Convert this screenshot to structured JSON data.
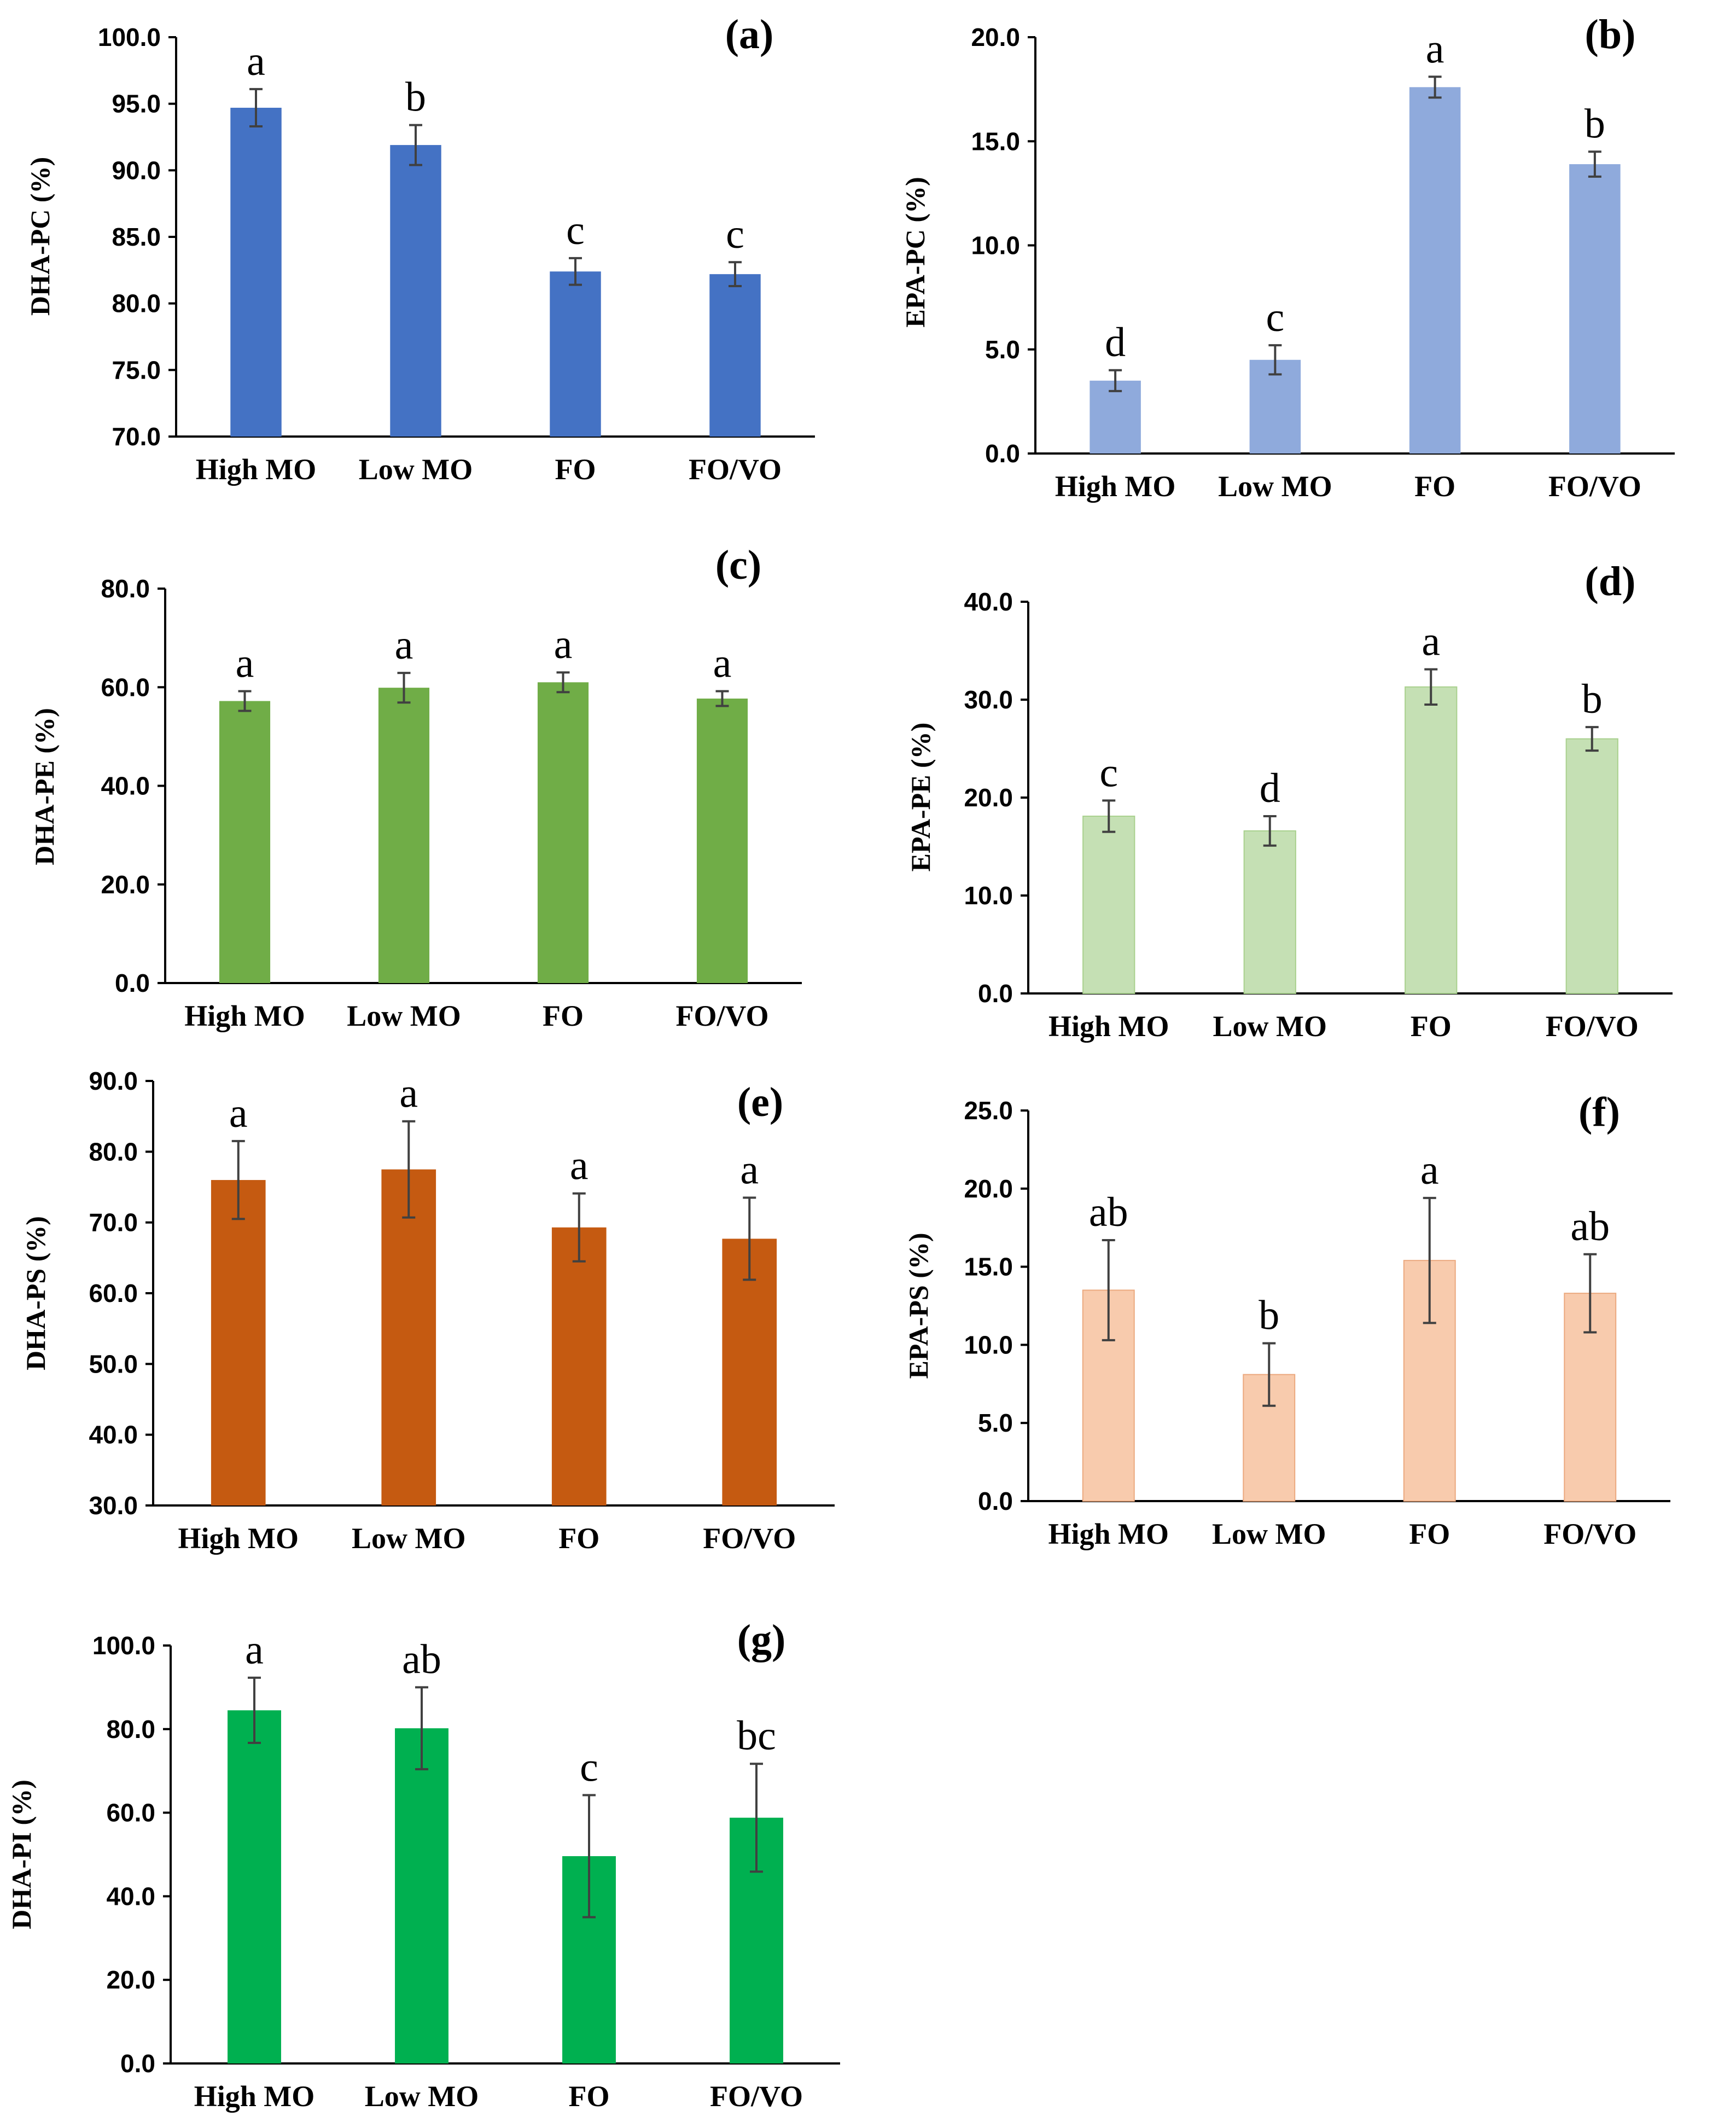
{
  "colors": {
    "a": "#4472C4",
    "b": "#8FAADC",
    "c": "#70AD47",
    "d": "#C5E0B4",
    "e": "#C55A11",
    "f": "#F8CBAD",
    "g": "#00B050"
  },
  "chart_data": [
    {
      "id": "a",
      "type": "bar",
      "panel_label": "(a)",
      "ylabel": "DHA-PC (%)",
      "categories": [
        "High MO",
        "Low MO",
        "FO",
        "FO/VO"
      ],
      "values": [
        94.7,
        91.9,
        82.4,
        82.2
      ],
      "errors": [
        1.4,
        1.5,
        1.0,
        0.9
      ],
      "significance": [
        "a",
        "b",
        "c",
        "c"
      ],
      "ylim": [
        70,
        100
      ],
      "yticks": [
        "70.0",
        "75.0",
        "80.0",
        "85.0",
        "90.0",
        "95.0",
        "100.0"
      ],
      "grid": false
    },
    {
      "id": "b",
      "type": "bar",
      "panel_label": "(b)",
      "ylabel": "EPA-PC (%)",
      "categories": [
        "High MO",
        "Low MO",
        "FO",
        "FO/VO"
      ],
      "values": [
        3.5,
        4.5,
        17.6,
        13.9
      ],
      "errors": [
        0.5,
        0.7,
        0.5,
        0.6
      ],
      "significance": [
        "d",
        "c",
        "a",
        "b"
      ],
      "ylim": [
        0,
        20
      ],
      "yticks": [
        "0.0",
        "5.0",
        "10.0",
        "15.0",
        "20.0"
      ],
      "grid": false
    },
    {
      "id": "c",
      "type": "bar",
      "panel_label": "(c)",
      "ylabel": "DHA-PE (%)",
      "categories": [
        "High MO",
        "Low MO",
        "FO",
        "FO/VO"
      ],
      "values": [
        57.2,
        59.9,
        61.0,
        57.7
      ],
      "errors": [
        2.0,
        3.0,
        2.0,
        1.5
      ],
      "significance": [
        "a",
        "a",
        "a",
        "a"
      ],
      "ylim": [
        0,
        80
      ],
      "yticks": [
        "0.0",
        "20.0",
        "40.0",
        "60.0",
        "80.0"
      ],
      "grid": false
    },
    {
      "id": "d",
      "type": "bar",
      "panel_label": "(d)",
      "ylabel": "EPA-PE (%)",
      "categories": [
        "High MO",
        "Low MO",
        "FO",
        "FO/VO"
      ],
      "values": [
        18.1,
        16.6,
        31.3,
        26.0
      ],
      "errors": [
        1.6,
        1.5,
        1.8,
        1.2
      ],
      "significance": [
        "c",
        "d",
        "a",
        "b"
      ],
      "ylim": [
        0,
        40
      ],
      "yticks": [
        "0.0",
        "10.0",
        "20.0",
        "30.0",
        "40.0"
      ],
      "grid": false
    },
    {
      "id": "e",
      "type": "bar",
      "panel_label": "(e)",
      "ylabel": "DHA-PS (%)",
      "categories": [
        "High MO",
        "Low MO",
        "FO",
        "FO/VO"
      ],
      "values": [
        76.0,
        77.5,
        69.3,
        67.7
      ],
      "errors": [
        5.5,
        6.8,
        4.8,
        5.8
      ],
      "significance": [
        "a",
        "a",
        "a",
        "a"
      ],
      "ylim": [
        30,
        90
      ],
      "yticks": [
        "30.0",
        "40.0",
        "50.0",
        "60.0",
        "70.0",
        "80.0",
        "90.0"
      ],
      "grid": false
    },
    {
      "id": "f",
      "type": "bar",
      "panel_label": "(f)",
      "ylabel": "EPA-PS (%)",
      "categories": [
        "High MO",
        "Low MO",
        "FO",
        "FO/VO"
      ],
      "values": [
        13.5,
        8.1,
        15.4,
        13.3
      ],
      "errors": [
        3.2,
        2.0,
        4.0,
        2.5
      ],
      "significance": [
        "ab",
        "b",
        "a",
        "ab"
      ],
      "ylim": [
        0,
        25
      ],
      "yticks": [
        "0.0",
        "5.0",
        "10.0",
        "15.0",
        "20.0",
        "25.0"
      ],
      "grid": false
    },
    {
      "id": "g",
      "type": "bar",
      "panel_label": "(g)",
      "ylabel": "DHA-PI (%)",
      "categories": [
        "High MO",
        "Low MO",
        "FO",
        "FO/VO"
      ],
      "values": [
        84.5,
        80.2,
        49.6,
        58.8
      ],
      "errors": [
        7.8,
        9.8,
        14.6,
        12.9
      ],
      "significance": [
        "a",
        "ab",
        "c",
        "bc"
      ],
      "ylim": [
        0,
        100
      ],
      "yticks": [
        "0.0",
        "20.0",
        "40.0",
        "60.0",
        "80.0",
        "100.0"
      ],
      "grid": false
    }
  ]
}
